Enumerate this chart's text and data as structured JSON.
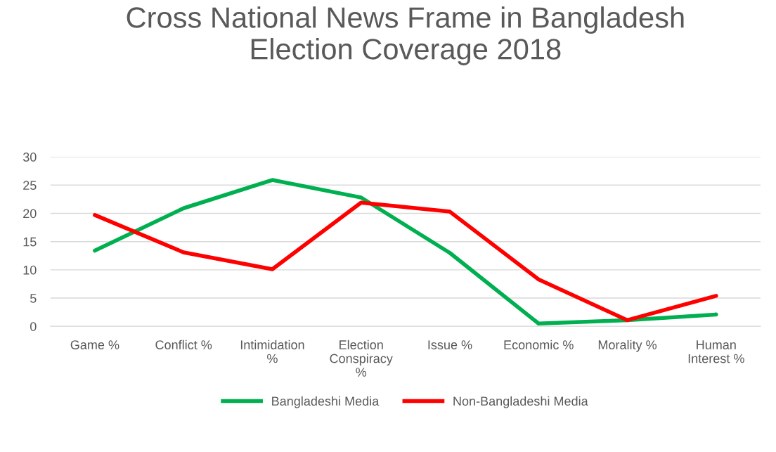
{
  "chart_data": {
    "type": "line",
    "title": "Cross National News Frame in Bangladesh\nElection Coverage 2018",
    "categories": [
      "Game %",
      "Conflict %",
      "Intimidation\n%",
      "Election\nConspiracy\n%",
      "Issue %",
      "Economic %",
      "Morality %",
      "Human\nInterest %"
    ],
    "series": [
      {
        "name": "Bangladeshi Media",
        "color": "#00b050",
        "values": [
          13.4,
          20.9,
          25.9,
          22.8,
          13.0,
          0.5,
          1.1,
          2.1
        ]
      },
      {
        "name": "Non-Bangladeshi Media",
        "color": "#ff0000",
        "values": [
          19.7,
          13.1,
          10.1,
          21.9,
          20.3,
          8.3,
          1.1,
          5.4
        ]
      }
    ],
    "ylim": [
      0,
      30
    ],
    "yticks": [
      0,
      5,
      10,
      15,
      20,
      25,
      30
    ],
    "grid": "y",
    "legend": "bottom",
    "marker": "none",
    "line_style": "solid"
  }
}
